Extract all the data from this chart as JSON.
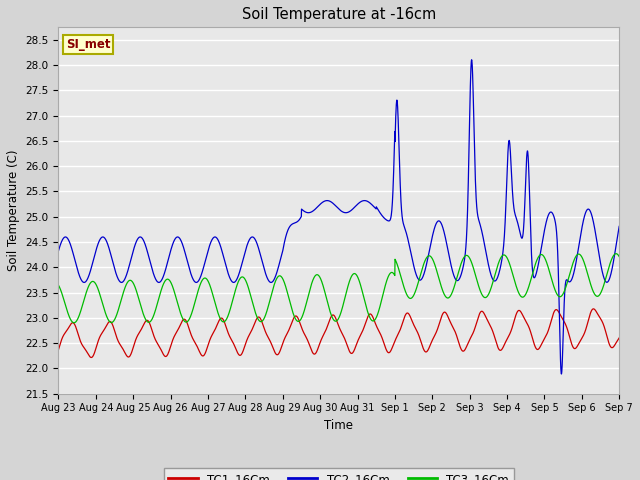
{
  "title": "Soil Temperature at -16cm",
  "xlabel": "Time",
  "ylabel": "Soil Temperature (C)",
  "ylim": [
    21.5,
    28.75
  ],
  "fig_bg": "#d5d5d5",
  "plot_bg": "#e8e8e8",
  "grid_color": "#ffffff",
  "legend_label": "SI_met",
  "legend_bg": "#ffffcc",
  "legend_border": "#aaaa00",
  "line_colors": {
    "TC1": "#cc0000",
    "TC2": "#0000cc",
    "TC3": "#00bb00"
  },
  "line_labels": [
    "TC1_16Cm",
    "TC2_16Cm",
    "TC3_16Cm"
  ],
  "xtick_labels": [
    "Aug 23",
    "Aug 24",
    "Aug 25",
    "Aug 26",
    "Aug 27",
    "Aug 28",
    "Aug 29",
    "Aug 30",
    "Aug 31",
    "Sep 1",
    "Sep 2",
    "Sep 3",
    "Sep 4",
    "Sep 5",
    "Sep 6",
    "Sep 7"
  ],
  "ytick_values": [
    21.5,
    22.0,
    22.5,
    23.0,
    23.5,
    24.0,
    24.5,
    25.0,
    25.5,
    26.0,
    26.5,
    27.0,
    27.5,
    28.0,
    28.5
  ]
}
